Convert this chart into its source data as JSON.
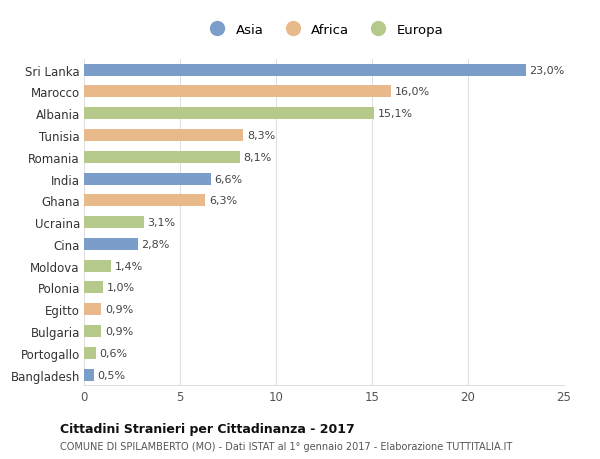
{
  "countries": [
    "Sri Lanka",
    "Marocco",
    "Albania",
    "Tunisia",
    "Romania",
    "India",
    "Ghana",
    "Ucraina",
    "Cina",
    "Moldova",
    "Polonia",
    "Egitto",
    "Bulgaria",
    "Portogallo",
    "Bangladesh"
  ],
  "values": [
    23.0,
    16.0,
    15.1,
    8.3,
    8.1,
    6.6,
    6.3,
    3.1,
    2.8,
    1.4,
    1.0,
    0.9,
    0.9,
    0.6,
    0.5
  ],
  "labels": [
    "23,0%",
    "16,0%",
    "15,1%",
    "8,3%",
    "8,1%",
    "6,6%",
    "6,3%",
    "3,1%",
    "2,8%",
    "1,4%",
    "1,0%",
    "0,9%",
    "0,9%",
    "0,6%",
    "0,5%"
  ],
  "continents": [
    "Asia",
    "Africa",
    "Europa",
    "Africa",
    "Europa",
    "Asia",
    "Africa",
    "Europa",
    "Asia",
    "Europa",
    "Europa",
    "Africa",
    "Europa",
    "Europa",
    "Asia"
  ],
  "colors": {
    "Asia": "#7b9dc9",
    "Africa": "#e8b98a",
    "Europa": "#b5c98a"
  },
  "title": "Cittadini Stranieri per Cittadinanza - 2017",
  "subtitle": "COMUNE DI SPILAMBERTO (MO) - Dati ISTAT al 1° gennaio 2017 - Elaborazione TUTTITALIA.IT",
  "xlim": [
    0,
    25
  ],
  "xticks": [
    0,
    5,
    10,
    15,
    20,
    25
  ],
  "bg_color": "#ffffff",
  "grid_color": "#dddddd",
  "bar_height": 0.55
}
